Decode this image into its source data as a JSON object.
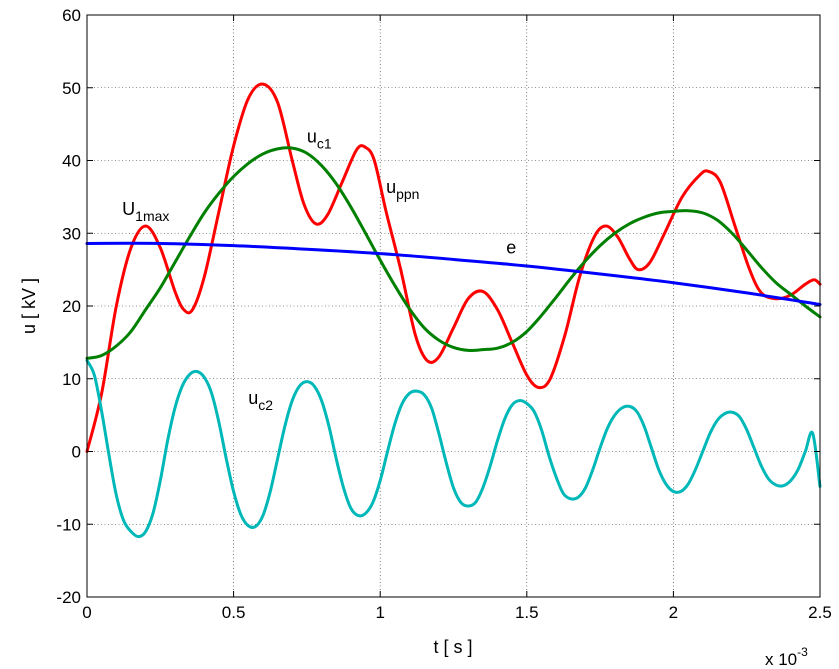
{
  "chart_data": {
    "type": "line",
    "xlabel": "t [ s ]",
    "ylabel": "u [ kV ]",
    "x_exponent_label": "x 10",
    "x_exponent_power": "-3",
    "xlim": [
      0,
      2.5
    ],
    "ylim": [
      -20,
      60
    ],
    "x_ticks": [
      0,
      0.5,
      1,
      1.5,
      2,
      2.5
    ],
    "x_tick_labels": [
      "0",
      "0.5",
      "1",
      "1.5",
      "2",
      "2.5"
    ],
    "y_ticks": [
      -20,
      -10,
      0,
      10,
      20,
      30,
      40,
      50,
      60
    ],
    "y_tick_labels": [
      "-20",
      "-10",
      "0",
      "10",
      "20",
      "30",
      "40",
      "50",
      "60"
    ],
    "grid": true,
    "series": [
      {
        "color": "#ff0000",
        "points": [
          [
            0,
            0
          ],
          [
            0.05,
            8
          ],
          [
            0.1,
            20
          ],
          [
            0.15,
            28
          ],
          [
            0.2,
            31
          ],
          [
            0.25,
            28
          ],
          [
            0.3,
            22
          ],
          [
            0.33,
            19.5
          ],
          [
            0.36,
            19.5
          ],
          [
            0.4,
            24
          ],
          [
            0.45,
            33
          ],
          [
            0.5,
            42
          ],
          [
            0.55,
            48.5
          ],
          [
            0.6,
            50.5
          ],
          [
            0.65,
            48
          ],
          [
            0.7,
            40
          ],
          [
            0.74,
            34
          ],
          [
            0.78,
            31.3
          ],
          [
            0.82,
            32.5
          ],
          [
            0.87,
            37
          ],
          [
            0.92,
            41.5
          ],
          [
            0.95,
            41.8
          ],
          [
            0.98,
            40
          ],
          [
            1.02,
            33
          ],
          [
            1.07,
            25
          ],
          [
            1.12,
            16
          ],
          [
            1.16,
            12.5
          ],
          [
            1.2,
            13
          ],
          [
            1.25,
            17
          ],
          [
            1.3,
            21
          ],
          [
            1.35,
            22
          ],
          [
            1.4,
            19.5
          ],
          [
            1.45,
            15
          ],
          [
            1.5,
            10.5
          ],
          [
            1.54,
            8.8
          ],
          [
            1.58,
            10
          ],
          [
            1.63,
            16
          ],
          [
            1.68,
            24
          ],
          [
            1.73,
            29.5
          ],
          [
            1.77,
            31
          ],
          [
            1.81,
            29.5
          ],
          [
            1.85,
            26.5
          ],
          [
            1.88,
            25
          ],
          [
            1.92,
            26
          ],
          [
            1.97,
            30
          ],
          [
            2.03,
            35
          ],
          [
            2.09,
            38
          ],
          [
            2.12,
            38.5
          ],
          [
            2.16,
            37
          ],
          [
            2.21,
            31
          ],
          [
            2.26,
            25
          ],
          [
            2.3,
            21.8
          ],
          [
            2.35,
            21
          ],
          [
            2.4,
            21.5
          ],
          [
            2.45,
            23
          ],
          [
            2.48,
            23.6
          ],
          [
            2.5,
            23
          ]
        ]
      },
      {
        "color": "#008000",
        "points": [
          [
            0,
            12.8
          ],
          [
            0.05,
            13.2
          ],
          [
            0.1,
            14.5
          ],
          [
            0.15,
            16.5
          ],
          [
            0.2,
            19.5
          ],
          [
            0.25,
            22.5
          ],
          [
            0.3,
            26
          ],
          [
            0.35,
            29.5
          ],
          [
            0.4,
            32.8
          ],
          [
            0.45,
            35.5
          ],
          [
            0.5,
            37.8
          ],
          [
            0.55,
            39.6
          ],
          [
            0.6,
            40.9
          ],
          [
            0.65,
            41.6
          ],
          [
            0.7,
            41.7
          ],
          [
            0.75,
            41
          ],
          [
            0.8,
            39.3
          ],
          [
            0.85,
            36.8
          ],
          [
            0.9,
            33.6
          ],
          [
            0.95,
            30
          ],
          [
            1,
            26.3
          ],
          [
            1.05,
            22.8
          ],
          [
            1.1,
            19.6
          ],
          [
            1.15,
            17
          ],
          [
            1.2,
            15.3
          ],
          [
            1.25,
            14.3
          ],
          [
            1.3,
            13.9
          ],
          [
            1.35,
            14
          ],
          [
            1.4,
            14.2
          ],
          [
            1.45,
            15
          ],
          [
            1.5,
            16.5
          ],
          [
            1.55,
            18.7
          ],
          [
            1.6,
            21.2
          ],
          [
            1.65,
            23.8
          ],
          [
            1.7,
            26.2
          ],
          [
            1.75,
            28.3
          ],
          [
            1.8,
            30
          ],
          [
            1.85,
            31.3
          ],
          [
            1.9,
            32.2
          ],
          [
            1.95,
            32.8
          ],
          [
            2,
            33
          ],
          [
            2.05,
            33.1
          ],
          [
            2.1,
            32.8
          ],
          [
            2.15,
            31.8
          ],
          [
            2.2,
            30
          ],
          [
            2.25,
            27.7
          ],
          [
            2.3,
            25.3
          ],
          [
            2.35,
            23.2
          ],
          [
            2.4,
            21.6
          ],
          [
            2.45,
            20
          ],
          [
            2.5,
            18.5
          ]
        ]
      },
      {
        "color": "#0000ff",
        "points": [
          [
            0,
            28.6
          ],
          [
            0.25,
            28.6
          ],
          [
            0.5,
            28.3
          ],
          [
            0.75,
            27.8
          ],
          [
            1,
            27.2
          ],
          [
            1.25,
            26.4
          ],
          [
            1.5,
            25.5
          ],
          [
            1.75,
            24.4
          ],
          [
            2,
            23.2
          ],
          [
            2.25,
            21.8
          ],
          [
            2.5,
            20.2
          ]
        ]
      },
      {
        "color": "#00b8b8",
        "points": [
          [
            0,
            12.5
          ],
          [
            0.025,
            10.5
          ],
          [
            0.05,
            5.5
          ],
          [
            0.075,
            -0.5
          ],
          [
            0.1,
            -6
          ],
          [
            0.125,
            -9.5
          ],
          [
            0.15,
            -11
          ],
          [
            0.175,
            -11.7
          ],
          [
            0.2,
            -11
          ],
          [
            0.225,
            -8.5
          ],
          [
            0.25,
            -4
          ],
          [
            0.275,
            1.5
          ],
          [
            0.3,
            6
          ],
          [
            0.325,
            9
          ],
          [
            0.35,
            10.6
          ],
          [
            0.375,
            11
          ],
          [
            0.4,
            10.2
          ],
          [
            0.425,
            8
          ],
          [
            0.45,
            4
          ],
          [
            0.475,
            -1
          ],
          [
            0.5,
            -5.5
          ],
          [
            0.525,
            -8.7
          ],
          [
            0.55,
            -10.2
          ],
          [
            0.575,
            -10.3
          ],
          [
            0.6,
            -8.8
          ],
          [
            0.625,
            -5.5
          ],
          [
            0.65,
            -1
          ],
          [
            0.675,
            3.5
          ],
          [
            0.7,
            7
          ],
          [
            0.725,
            9
          ],
          [
            0.75,
            9.6
          ],
          [
            0.775,
            9
          ],
          [
            0.8,
            7
          ],
          [
            0.825,
            3.5
          ],
          [
            0.85,
            -1
          ],
          [
            0.875,
            -5
          ],
          [
            0.9,
            -7.8
          ],
          [
            0.925,
            -8.8
          ],
          [
            0.95,
            -8.5
          ],
          [
            0.975,
            -7
          ],
          [
            1,
            -4
          ],
          [
            1.025,
            0
          ],
          [
            1.05,
            3.8
          ],
          [
            1.075,
            6.6
          ],
          [
            1.1,
            8
          ],
          [
            1.125,
            8.3
          ],
          [
            1.15,
            7.8
          ],
          [
            1.175,
            6
          ],
          [
            1.2,
            2.5
          ],
          [
            1.225,
            -1.5
          ],
          [
            1.25,
            -5
          ],
          [
            1.275,
            -7
          ],
          [
            1.3,
            -7.5
          ],
          [
            1.325,
            -7
          ],
          [
            1.35,
            -5
          ],
          [
            1.375,
            -2
          ],
          [
            1.4,
            1.5
          ],
          [
            1.425,
            4.5
          ],
          [
            1.45,
            6.4
          ],
          [
            1.475,
            7
          ],
          [
            1.5,
            6.6
          ],
          [
            1.525,
            5.5
          ],
          [
            1.55,
            3
          ],
          [
            1.575,
            -0.5
          ],
          [
            1.6,
            -3.5
          ],
          [
            1.625,
            -5.8
          ],
          [
            1.65,
            -6.5
          ],
          [
            1.675,
            -6.3
          ],
          [
            1.7,
            -5
          ],
          [
            1.725,
            -2.5
          ],
          [
            1.75,
            0.5
          ],
          [
            1.775,
            3.2
          ],
          [
            1.8,
            5
          ],
          [
            1.825,
            6
          ],
          [
            1.85,
            6.2
          ],
          [
            1.875,
            5.5
          ],
          [
            1.9,
            3.5
          ],
          [
            1.925,
            0.5
          ],
          [
            1.95,
            -2.5
          ],
          [
            1.975,
            -4.5
          ],
          [
            2,
            -5.5
          ],
          [
            2.025,
            -5.5
          ],
          [
            2.05,
            -4.5
          ],
          [
            2.075,
            -2.5
          ],
          [
            2.1,
            0
          ],
          [
            2.125,
            2.5
          ],
          [
            2.15,
            4.3
          ],
          [
            2.175,
            5.2
          ],
          [
            2.2,
            5.4
          ],
          [
            2.225,
            4.8
          ],
          [
            2.25,
            3
          ],
          [
            2.275,
            0.5
          ],
          [
            2.3,
            -2
          ],
          [
            2.325,
            -3.8
          ],
          [
            2.35,
            -4.6
          ],
          [
            2.375,
            -4.7
          ],
          [
            2.4,
            -4
          ],
          [
            2.425,
            -2.5
          ],
          [
            2.45,
            0
          ],
          [
            2.475,
            2.5
          ],
          [
            2.5,
            -4.8
          ]
        ]
      }
    ],
    "annotations": [
      {
        "base": "U",
        "sub": "1max",
        "x": 0.12,
        "y": 32.5
      },
      {
        "base": "u",
        "sub": "c1",
        "x": 0.75,
        "y": 42.5
      },
      {
        "base": "u",
        "sub": "ppn",
        "x": 1.02,
        "y": 35.5
      },
      {
        "base": "e",
        "sub": "",
        "x": 1.43,
        "y": 27.2
      },
      {
        "base": "u",
        "sub": "c2",
        "x": 0.55,
        "y": 6.5
      }
    ]
  }
}
